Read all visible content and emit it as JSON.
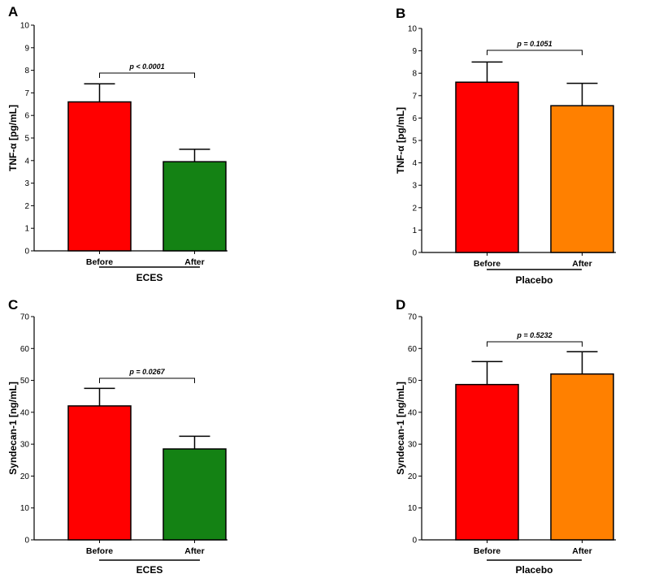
{
  "chart_data": [
    {
      "type": "bar",
      "panel": "A",
      "ylabel": "TNF-α [pg/mL]",
      "group": "ECES",
      "categories": [
        "Before",
        "After"
      ],
      "values": [
        6.6,
        3.95
      ],
      "errors": [
        0.8,
        0.55
      ],
      "colors": [
        "#ff0000",
        "#148214"
      ],
      "ylim": [
        0,
        10
      ],
      "yticks": [
        "0",
        "1",
        "2",
        "3",
        "4",
        "5",
        "6",
        "7",
        "8",
        "9",
        "10"
      ],
      "pvalue": "p < 0.0001"
    },
    {
      "type": "bar",
      "panel": "B",
      "ylabel": "TNF-α [pg/mL]",
      "group": "Placebo",
      "categories": [
        "Before",
        "After"
      ],
      "values": [
        7.6,
        6.55
      ],
      "errors": [
        0.9,
        1.0
      ],
      "colors": [
        "#ff0000",
        "#ff8000"
      ],
      "ylim": [
        0,
        10
      ],
      "yticks": [
        "0",
        "1",
        "2",
        "3",
        "4",
        "5",
        "6",
        "7",
        "8",
        "9",
        "10"
      ],
      "pvalue": "p = 0.1051"
    },
    {
      "type": "bar",
      "panel": "C",
      "ylabel": "Syndecan-1 [ng/mL]",
      "group": "ECES",
      "categories": [
        "Before",
        "After"
      ],
      "values": [
        42,
        28.5
      ],
      "errors": [
        5.5,
        4.0
      ],
      "colors": [
        "#ff0000",
        "#148214"
      ],
      "ylim": [
        0,
        70
      ],
      "yticks": [
        "0",
        "10",
        "20",
        "30",
        "40",
        "50",
        "60",
        "70"
      ],
      "pvalue": "p = 0.0267"
    },
    {
      "type": "bar",
      "panel": "D",
      "ylabel": "Syndecan-1 [ng/mL]",
      "group": "Placebo",
      "categories": [
        "Before",
        "After"
      ],
      "values": [
        48.7,
        52
      ],
      "errors": [
        7.2,
        7.0
      ],
      "colors": [
        "#ff0000",
        "#ff8000"
      ],
      "ylim": [
        0,
        70
      ],
      "yticks": [
        "0",
        "10",
        "20",
        "30",
        "40",
        "50",
        "60",
        "70"
      ],
      "pvalue": "p = 0.5232"
    }
  ]
}
